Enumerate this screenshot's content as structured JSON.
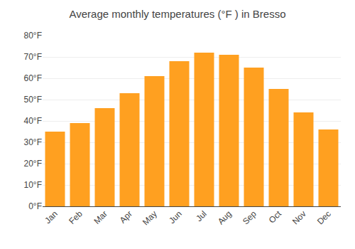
{
  "chart_data": {
    "type": "bar",
    "title": "Average monthly temperatures (°F ) in Bresso",
    "categories": [
      "Jan",
      "Feb",
      "Mar",
      "Apr",
      "May",
      "Jun",
      "Jul",
      "Aug",
      "Sep",
      "Oct",
      "Nov",
      "Dec"
    ],
    "values": [
      35,
      39,
      46,
      53,
      61,
      68,
      72,
      71,
      65,
      55,
      44,
      36
    ],
    "color": "#FFA020",
    "ylim": [
      0,
      80
    ],
    "yticks": [
      {
        "value": 0,
        "label": "0°F"
      },
      {
        "value": 10,
        "label": "10°F"
      },
      {
        "value": 20,
        "label": "20°F"
      },
      {
        "value": 30,
        "label": "30°F"
      },
      {
        "value": 40,
        "label": "40°F"
      },
      {
        "value": 50,
        "label": "50°F"
      },
      {
        "value": 60,
        "label": "60°F"
      },
      {
        "value": 70,
        "label": "70°F"
      },
      {
        "value": 80,
        "label": "80°F"
      }
    ],
    "grid": true
  }
}
